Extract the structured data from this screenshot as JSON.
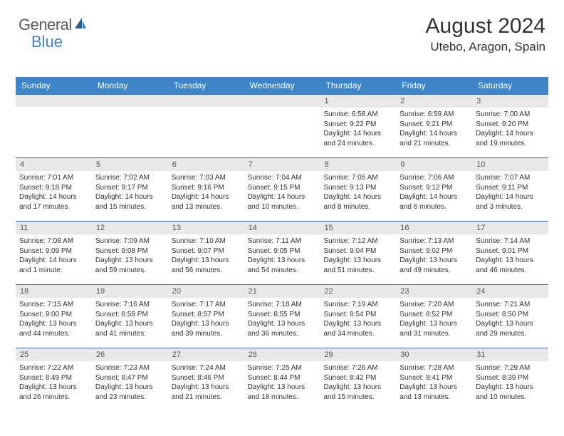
{
  "logo": {
    "text1": "General",
    "text2": "Blue",
    "text1_color": "#5a5a5a",
    "text2_color": "#3d85c6",
    "icon_color": "#2a5d94"
  },
  "header": {
    "month_title": "August 2024",
    "location": "Utebo, Aragon, Spain"
  },
  "colors": {
    "header_bg": "#3d85c6",
    "header_text": "#ffffff",
    "daynum_bg": "#e8e8e8",
    "border": "#3d6e9c",
    "body_text": "#333333"
  },
  "fonts": {
    "month_title_size": 30,
    "location_size": 17,
    "weekday_size": 12,
    "daynum_size": 11,
    "content_size": 10
  },
  "weekdays": [
    "Sunday",
    "Monday",
    "Tuesday",
    "Wednesday",
    "Thursday",
    "Friday",
    "Saturday"
  ],
  "weeks": [
    [
      {
        "empty": true
      },
      {
        "empty": true
      },
      {
        "empty": true
      },
      {
        "empty": true
      },
      {
        "num": "1",
        "sunrise": "6:58 AM",
        "sunset": "9:22 PM",
        "daylight": "14 hours and 24 minutes."
      },
      {
        "num": "2",
        "sunrise": "6:59 AM",
        "sunset": "9:21 PM",
        "daylight": "14 hours and 21 minutes."
      },
      {
        "num": "3",
        "sunrise": "7:00 AM",
        "sunset": "9:20 PM",
        "daylight": "14 hours and 19 minutes."
      }
    ],
    [
      {
        "num": "4",
        "sunrise": "7:01 AM",
        "sunset": "9:18 PM",
        "daylight": "14 hours and 17 minutes."
      },
      {
        "num": "5",
        "sunrise": "7:02 AM",
        "sunset": "9:17 PM",
        "daylight": "14 hours and 15 minutes."
      },
      {
        "num": "6",
        "sunrise": "7:03 AM",
        "sunset": "9:16 PM",
        "daylight": "14 hours and 13 minutes."
      },
      {
        "num": "7",
        "sunrise": "7:04 AM",
        "sunset": "9:15 PM",
        "daylight": "14 hours and 10 minutes."
      },
      {
        "num": "8",
        "sunrise": "7:05 AM",
        "sunset": "9:13 PM",
        "daylight": "14 hours and 8 minutes."
      },
      {
        "num": "9",
        "sunrise": "7:06 AM",
        "sunset": "9:12 PM",
        "daylight": "14 hours and 6 minutes."
      },
      {
        "num": "10",
        "sunrise": "7:07 AM",
        "sunset": "9:11 PM",
        "daylight": "14 hours and 3 minutes."
      }
    ],
    [
      {
        "num": "11",
        "sunrise": "7:08 AM",
        "sunset": "9:09 PM",
        "daylight": "14 hours and 1 minute."
      },
      {
        "num": "12",
        "sunrise": "7:09 AM",
        "sunset": "9:08 PM",
        "daylight": "13 hours and 59 minutes."
      },
      {
        "num": "13",
        "sunrise": "7:10 AM",
        "sunset": "9:07 PM",
        "daylight": "13 hours and 56 minutes."
      },
      {
        "num": "14",
        "sunrise": "7:11 AM",
        "sunset": "9:05 PM",
        "daylight": "13 hours and 54 minutes."
      },
      {
        "num": "15",
        "sunrise": "7:12 AM",
        "sunset": "9:04 PM",
        "daylight": "13 hours and 51 minutes."
      },
      {
        "num": "16",
        "sunrise": "7:13 AM",
        "sunset": "9:02 PM",
        "daylight": "13 hours and 49 minutes."
      },
      {
        "num": "17",
        "sunrise": "7:14 AM",
        "sunset": "9:01 PM",
        "daylight": "13 hours and 46 minutes."
      }
    ],
    [
      {
        "num": "18",
        "sunrise": "7:15 AM",
        "sunset": "9:00 PM",
        "daylight": "13 hours and 44 minutes."
      },
      {
        "num": "19",
        "sunrise": "7:16 AM",
        "sunset": "8:58 PM",
        "daylight": "13 hours and 41 minutes."
      },
      {
        "num": "20",
        "sunrise": "7:17 AM",
        "sunset": "8:57 PM",
        "daylight": "13 hours and 39 minutes."
      },
      {
        "num": "21",
        "sunrise": "7:18 AM",
        "sunset": "8:55 PM",
        "daylight": "13 hours and 36 minutes."
      },
      {
        "num": "22",
        "sunrise": "7:19 AM",
        "sunset": "8:54 PM",
        "daylight": "13 hours and 34 minutes."
      },
      {
        "num": "23",
        "sunrise": "7:20 AM",
        "sunset": "8:52 PM",
        "daylight": "13 hours and 31 minutes."
      },
      {
        "num": "24",
        "sunrise": "7:21 AM",
        "sunset": "8:50 PM",
        "daylight": "13 hours and 29 minutes."
      }
    ],
    [
      {
        "num": "25",
        "sunrise": "7:22 AM",
        "sunset": "8:49 PM",
        "daylight": "13 hours and 26 minutes."
      },
      {
        "num": "26",
        "sunrise": "7:23 AM",
        "sunset": "8:47 PM",
        "daylight": "13 hours and 23 minutes."
      },
      {
        "num": "27",
        "sunrise": "7:24 AM",
        "sunset": "8:46 PM",
        "daylight": "13 hours and 21 minutes."
      },
      {
        "num": "28",
        "sunrise": "7:25 AM",
        "sunset": "8:44 PM",
        "daylight": "13 hours and 18 minutes."
      },
      {
        "num": "29",
        "sunrise": "7:26 AM",
        "sunset": "8:42 PM",
        "daylight": "13 hours and 15 minutes."
      },
      {
        "num": "30",
        "sunrise": "7:28 AM",
        "sunset": "8:41 PM",
        "daylight": "13 hours and 13 minutes."
      },
      {
        "num": "31",
        "sunrise": "7:29 AM",
        "sunset": "8:39 PM",
        "daylight": "13 hours and 10 minutes."
      }
    ]
  ],
  "labels": {
    "sunrise": "Sunrise: ",
    "sunset": "Sunset: ",
    "daylight": "Daylight: "
  }
}
